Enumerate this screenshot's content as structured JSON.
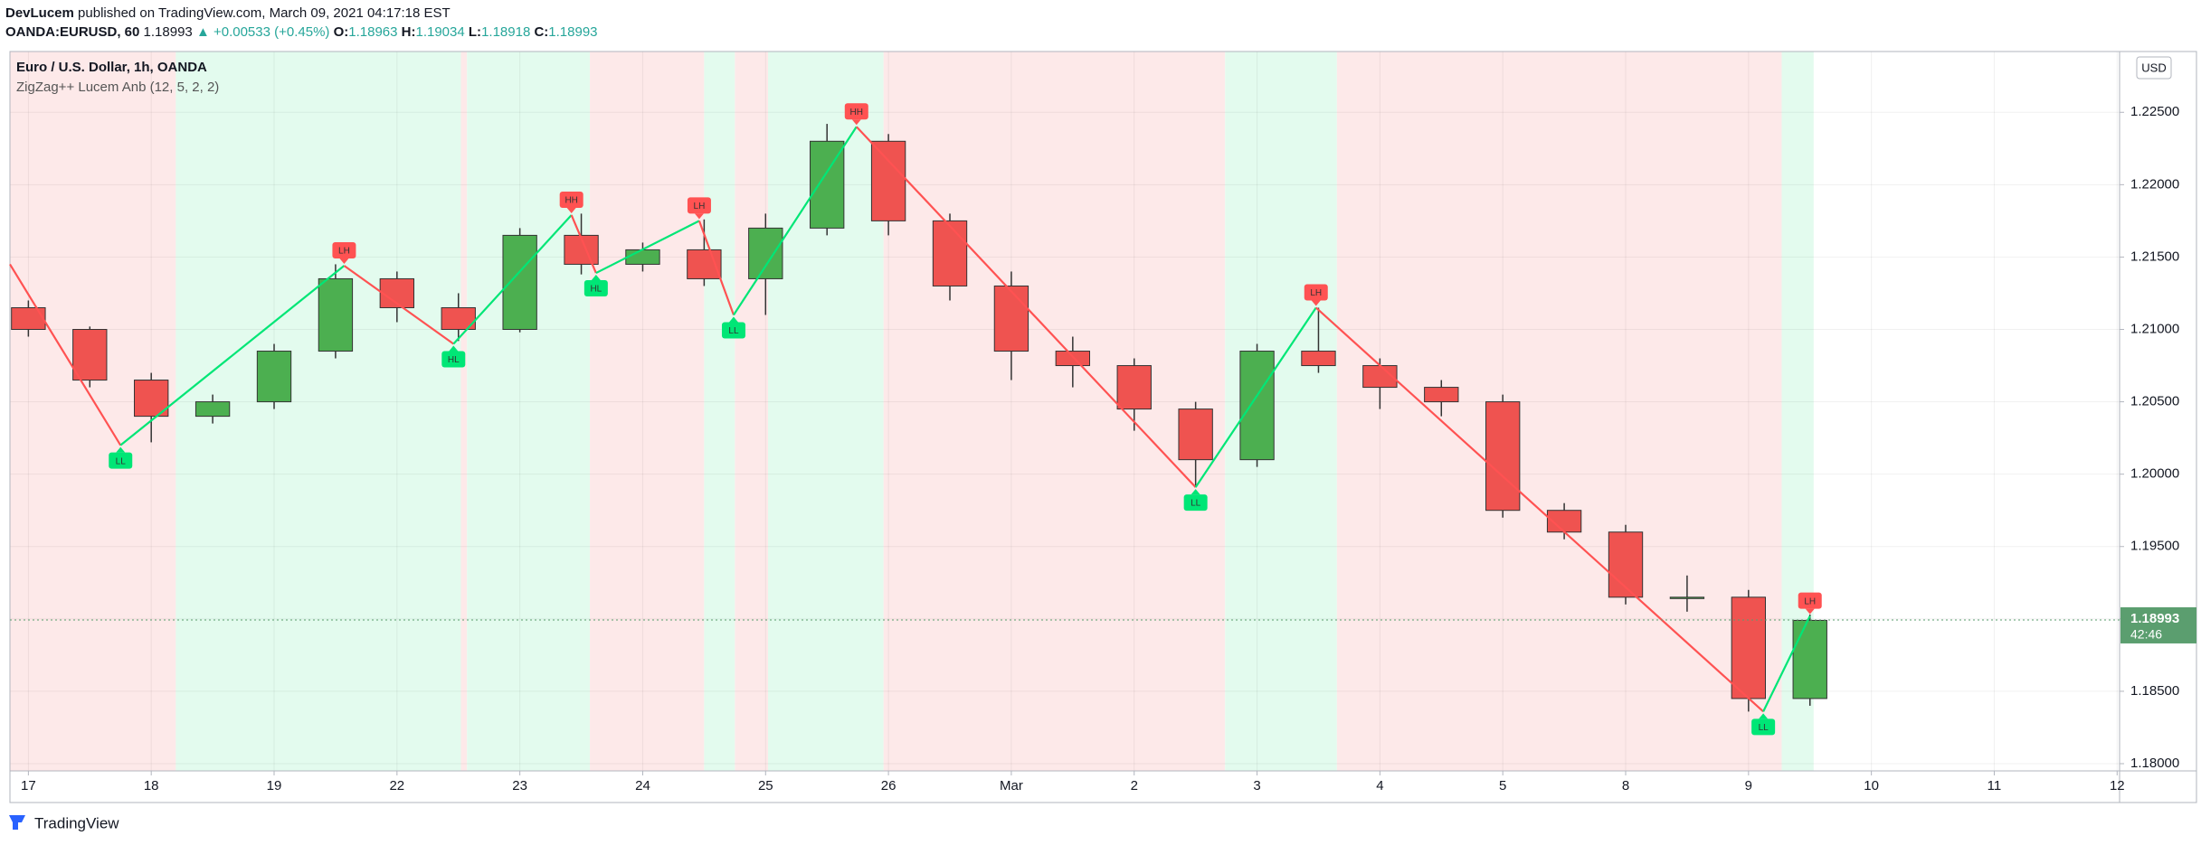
{
  "header": {
    "author": "DevLucem",
    "published": "published on TradingView.com, March 09, 2021 04:17:18 EST",
    "symbol": "OANDA:EURUSD, 60",
    "price": "1.18993",
    "arrow": "▲",
    "change": "+0.00533 (+0.45%)",
    "open_label": "O:",
    "open": "1.18963",
    "high_label": "H:",
    "high": "1.19034",
    "low_label": "L:",
    "low": "1.18918",
    "close_label": "C:",
    "close": "1.18993"
  },
  "chart_data": {
    "type": "candlestick",
    "title": "Euro / U.S. Dollar, 1h, OANDA",
    "indicator": "ZigZag++ Lucem Anb (12, 5, 2, 2)",
    "currency": "USD",
    "x": [
      0,
      0.5,
      1,
      1.5,
      2,
      2.5,
      3,
      3.5,
      4,
      4.5,
      5,
      5.5,
      6,
      6.5,
      7,
      7.5,
      8,
      8.5,
      9,
      9.5,
      10,
      10.5,
      11,
      11.5,
      12,
      12.5,
      13,
      13.5,
      14,
      14.5
    ],
    "open": [
      1.2115,
      1.21,
      1.2065,
      1.204,
      1.205,
      1.2085,
      1.2135,
      1.2115,
      1.21,
      1.2165,
      1.2145,
      1.2155,
      1.2135,
      1.217,
      1.223,
      1.2175,
      1.213,
      1.2085,
      1.2075,
      1.2045,
      1.201,
      1.2085,
      1.2075,
      1.206,
      1.205,
      1.1975,
      1.196,
      1.1915,
      1.1915,
      1.1845
    ],
    "high": [
      1.212,
      1.2102,
      1.207,
      1.2055,
      1.209,
      1.2145,
      1.214,
      1.2125,
      1.217,
      1.218,
      1.216,
      1.2176,
      1.218,
      1.2242,
      1.2235,
      1.218,
      1.214,
      1.2095,
      1.208,
      1.205,
      1.209,
      1.2115,
      1.208,
      1.2065,
      1.2055,
      1.198,
      1.1965,
      1.193,
      1.192,
      1.1903
    ],
    "low": [
      1.2095,
      1.206,
      1.2022,
      1.2035,
      1.2045,
      1.208,
      1.2105,
      1.2092,
      1.2098,
      1.2138,
      1.214,
      1.213,
      1.211,
      1.2165,
      1.2165,
      1.212,
      1.2065,
      1.206,
      1.203,
      1.1991,
      1.2005,
      1.207,
      1.2045,
      1.204,
      1.197,
      1.1955,
      1.191,
      1.1905,
      1.1836,
      1.184
    ],
    "close": [
      1.21,
      1.2065,
      1.204,
      1.205,
      1.2085,
      1.2135,
      1.2115,
      1.21,
      1.2165,
      1.2145,
      1.2155,
      1.2135,
      1.217,
      1.223,
      1.2175,
      1.213,
      1.2085,
      1.2075,
      1.2045,
      1.201,
      1.2085,
      1.2075,
      1.206,
      1.205,
      1.1975,
      1.196,
      1.1915,
      1.1915,
      1.1845,
      1.1899
    ],
    "up_color": "#4caf50",
    "down_color": "#ef5350",
    "wick_color": "#333333",
    "xlim": [
      -0.15,
      17.02
    ],
    "xticks": [
      {
        "value": 0,
        "label": "17"
      },
      {
        "value": 1,
        "label": "18"
      },
      {
        "value": 2,
        "label": "19"
      },
      {
        "value": 3,
        "label": "22"
      },
      {
        "value": 4,
        "label": "23"
      },
      {
        "value": 5,
        "label": "24"
      },
      {
        "value": 6,
        "label": "25"
      },
      {
        "value": 7,
        "label": "26"
      },
      {
        "value": 8,
        "label": "Mar"
      },
      {
        "value": 9,
        "label": "2"
      },
      {
        "value": 10,
        "label": "3"
      },
      {
        "value": 11,
        "label": "4"
      },
      {
        "value": 12,
        "label": "5"
      },
      {
        "value": 13,
        "label": "8"
      },
      {
        "value": 14,
        "label": "9"
      },
      {
        "value": 15,
        "label": "10"
      },
      {
        "value": 16,
        "label": "11"
      },
      {
        "value": 17,
        "label": "12"
      }
    ],
    "ylim": [
      1.1795,
      1.2292
    ],
    "yticks": [
      {
        "value": 1.18,
        "label": "1.18000"
      },
      {
        "value": 1.185,
        "label": "1.18500"
      },
      {
        "value": 1.19,
        "label": "1.19000"
      },
      {
        "value": 1.195,
        "label": "1.19500"
      },
      {
        "value": 1.2,
        "label": "1.20000"
      },
      {
        "value": 1.205,
        "label": "1.20500"
      },
      {
        "value": 1.21,
        "label": "1.21000"
      },
      {
        "value": 1.215,
        "label": "1.21500"
      },
      {
        "value": 1.22,
        "label": "1.22000"
      },
      {
        "value": 1.225,
        "label": "1.22500"
      }
    ],
    "grid": true,
    "zones": [
      {
        "start": -0.15,
        "end": 1.2,
        "color": "#fde9e9"
      },
      {
        "start": 1.2,
        "end": 3.52,
        "color": "#e3fbee"
      },
      {
        "start": 3.52,
        "end": 3.57,
        "color": "#fde9e9"
      },
      {
        "start": 3.57,
        "end": 4.57,
        "color": "#e3fbee"
      },
      {
        "start": 4.57,
        "end": 5.5,
        "color": "#fde9e9"
      },
      {
        "start": 5.5,
        "end": 5.75,
        "color": "#e3fbee"
      },
      {
        "start": 5.75,
        "end": 6.02,
        "color": "#fde9e9"
      },
      {
        "start": 6.02,
        "end": 6.96,
        "color": "#e3fbee"
      },
      {
        "start": 6.96,
        "end": 9.74,
        "color": "#fde9e9"
      },
      {
        "start": 9.74,
        "end": 10.65,
        "color": "#e3fbee"
      },
      {
        "start": 10.65,
        "end": 14.27,
        "color": "#fde9e9"
      },
      {
        "start": 14.27,
        "end": 14.53,
        "color": "#e3fbee"
      }
    ],
    "zigzag": {
      "x": [
        -0.15,
        0.75,
        2.57,
        3.46,
        4.42,
        4.62,
        5.46,
        5.74,
        6.74,
        9.5,
        10.48,
        14.12,
        14.5
      ],
      "values": [
        1.2145,
        1.202,
        1.2144,
        1.209,
        1.2179,
        1.2139,
        1.2175,
        1.211,
        1.224,
        1.1991,
        1.2115,
        1.1836,
        1.1902
      ],
      "labels": [
        null,
        "LL",
        "LH",
        "HL",
        "HH",
        "HL",
        "LH",
        "LL",
        "HH",
        "LL",
        "LH",
        "LL",
        "LH"
      ],
      "up_color": "#00e676",
      "down_color": "#ff5252"
    },
    "last_price": {
      "value": 1.18993,
      "label": "1.18993"
    },
    "countdown": "42:46",
    "last_color": "#5b9e6f"
  },
  "footer": {
    "brand": "TradingView"
  }
}
